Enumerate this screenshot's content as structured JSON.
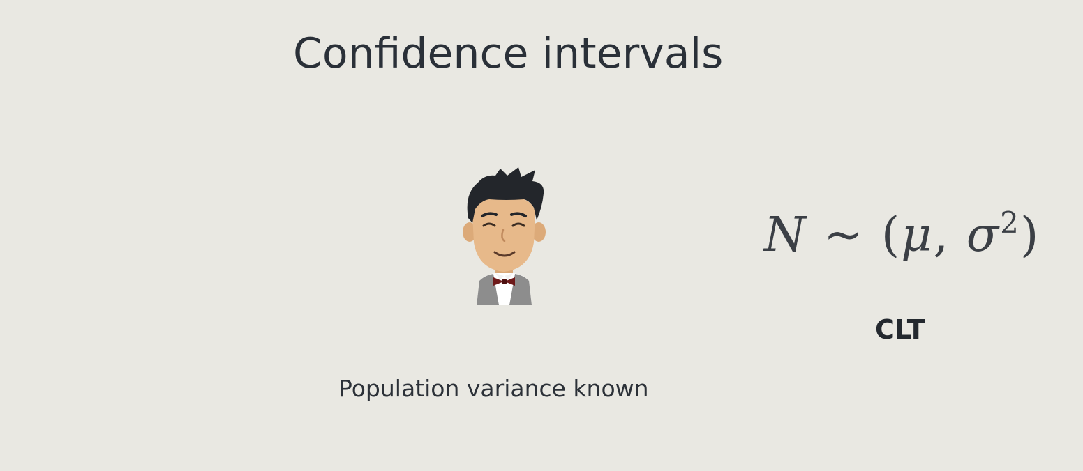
{
  "slide": {
    "title": "Confidence intervals",
    "caption": "Population variance known",
    "formula": {
      "lhs": "N",
      "tilde": "~",
      "open": "(",
      "mu": "μ",
      "comma": ",",
      "sigma": "σ",
      "exp": "2",
      "close": ")"
    },
    "formula_label": "CLT"
  },
  "illustration": {
    "icon": "person-with-bowtie-icon"
  },
  "colors": {
    "background": "#e9e8e2",
    "text": "#2a3038",
    "hair": "#23262b",
    "skin": "#e7b98a",
    "vest": "#8a8a8a",
    "bowtie": "#6e1a1a"
  }
}
